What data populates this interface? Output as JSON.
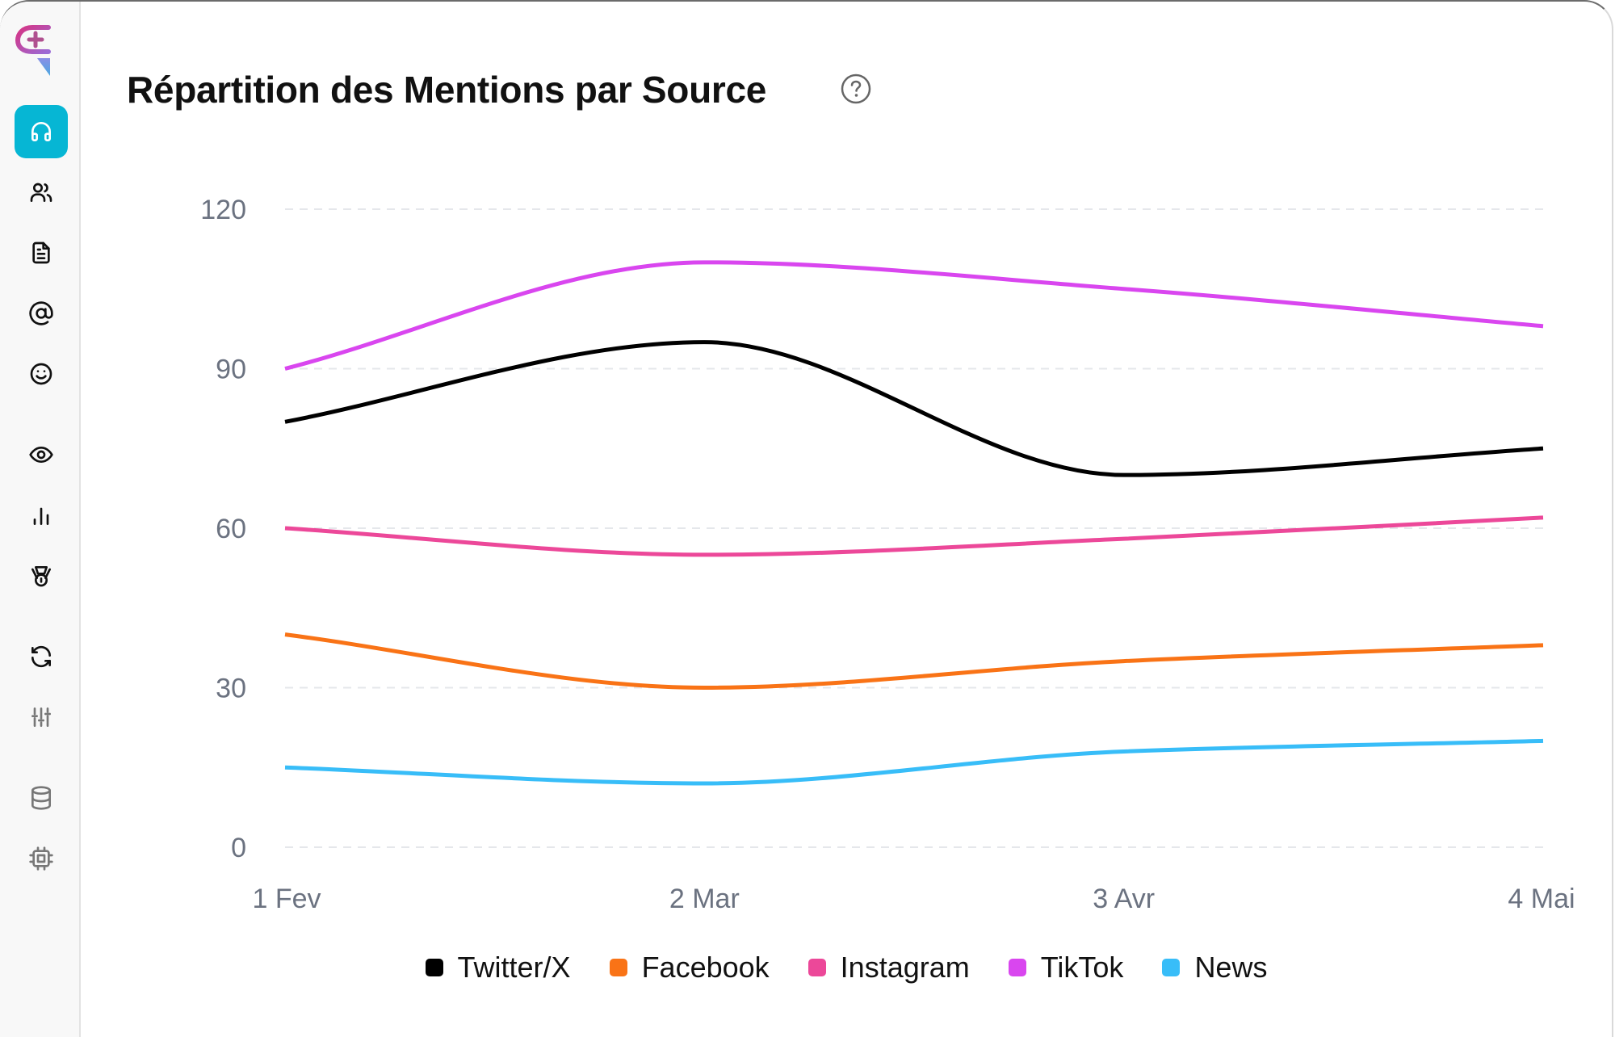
{
  "sidebar": {
    "logo": "app-logo",
    "items": [
      {
        "name": "support",
        "icon": "headphones-icon",
        "active": true
      },
      {
        "name": "users",
        "icon": "users-icon",
        "active": false
      },
      {
        "name": "documents",
        "icon": "file-text-icon",
        "active": false
      },
      {
        "name": "mentions",
        "icon": "at-sign-icon",
        "active": false
      },
      {
        "name": "sentiment",
        "icon": "smile-icon",
        "active": false
      },
      {
        "name": "monitoring",
        "icon": "eye-icon",
        "active": false
      },
      {
        "name": "analytics",
        "icon": "bar-chart-icon",
        "active": false
      },
      {
        "name": "awards",
        "icon": "medal-icon",
        "active": false
      },
      {
        "name": "sync",
        "icon": "refresh-icon",
        "active": false
      },
      {
        "name": "settings",
        "icon": "sliders-icon",
        "active": false
      },
      {
        "name": "database",
        "icon": "database-icon",
        "active": false
      },
      {
        "name": "processor",
        "icon": "cpu-icon",
        "active": false
      }
    ]
  },
  "header": {
    "title": "Répartition des Mentions par Source",
    "help_icon": "help-circle-icon"
  },
  "chart_data": {
    "type": "line",
    "title": "Répartition des Mentions par Source",
    "xlabel": "",
    "ylabel": "",
    "categories": [
      "1 Fev",
      "2 Mar",
      "3 Avr",
      "4 Mai"
    ],
    "yticks": [
      0,
      30,
      60,
      90,
      120
    ],
    "ylim": [
      0,
      120
    ],
    "grid": true,
    "legend_position": "bottom",
    "series": [
      {
        "name": "Twitter/X",
        "color": "#000000",
        "values": [
          80,
          95,
          70,
          75
        ]
      },
      {
        "name": "Facebook",
        "color": "#f97316",
        "values": [
          40,
          30,
          35,
          38
        ]
      },
      {
        "name": "Instagram",
        "color": "#ec4899",
        "values": [
          60,
          55,
          58,
          62
        ]
      },
      {
        "name": "TikTok",
        "color": "#d946ef",
        "values": [
          90,
          110,
          105,
          98
        ]
      },
      {
        "name": "News",
        "color": "#38bdf8",
        "values": [
          15,
          12,
          18,
          20
        ]
      }
    ]
  }
}
